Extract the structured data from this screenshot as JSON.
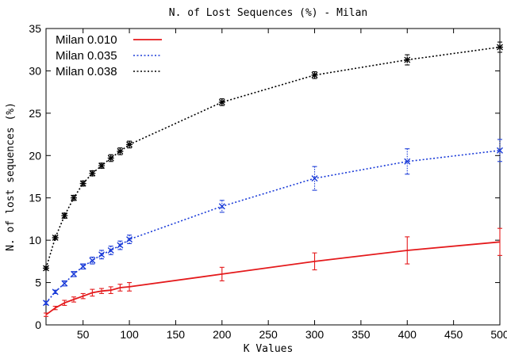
{
  "chart_data": {
    "type": "line",
    "title": "N. of Lost Sequences (%) - Milan",
    "xlabel": "K Values",
    "ylabel": "N. of lost sequences (%)",
    "xlim": [
      10,
      500
    ],
    "ylim": [
      0,
      35
    ],
    "x_ticks": [
      50,
      100,
      150,
      200,
      250,
      300,
      350,
      400,
      450,
      500
    ],
    "y_ticks": [
      0,
      5,
      10,
      15,
      20,
      25,
      30,
      35
    ],
    "grid": false,
    "legend_position": "top-left",
    "series": [
      {
        "name": "Milan 0.010",
        "color": "#e41a1c",
        "line_style": "solid",
        "marker": "none",
        "x": [
          10,
          20,
          30,
          40,
          50,
          60,
          70,
          80,
          90,
          100,
          200,
          300,
          400,
          500
        ],
        "y": [
          1.2,
          2.0,
          2.6,
          3.0,
          3.4,
          3.8,
          4.0,
          4.1,
          4.4,
          4.5,
          6.0,
          7.5,
          8.8,
          9.8
        ],
        "err": [
          0.2,
          0.2,
          0.3,
          0.3,
          0.3,
          0.4,
          0.3,
          0.4,
          0.4,
          0.5,
          0.8,
          1.0,
          1.6,
          1.6
        ]
      },
      {
        "name": "Milan 0.035",
        "color": "#1a3bd8",
        "line_style": "dotted",
        "marker": "x",
        "x": [
          10,
          20,
          30,
          40,
          50,
          60,
          70,
          80,
          90,
          100,
          200,
          300,
          400,
          500
        ],
        "y": [
          2.6,
          3.9,
          4.9,
          6.0,
          6.9,
          7.6,
          8.3,
          8.8,
          9.4,
          10.1,
          14.0,
          17.3,
          19.3,
          20.6
        ],
        "err": [
          0.2,
          0.2,
          0.3,
          0.3,
          0.3,
          0.4,
          0.5,
          0.5,
          0.5,
          0.5,
          0.7,
          1.4,
          1.5,
          1.3
        ]
      },
      {
        "name": "Milan 0.038",
        "color": "#000000",
        "line_style": "dotted",
        "marker": "asterisk",
        "x": [
          10,
          20,
          30,
          40,
          50,
          60,
          70,
          80,
          90,
          100,
          200,
          300,
          400,
          500
        ],
        "y": [
          6.7,
          10.3,
          12.9,
          15.0,
          16.7,
          17.9,
          18.8,
          19.7,
          20.5,
          21.3,
          26.3,
          29.5,
          31.3,
          32.8
        ],
        "err": [
          0.2,
          0.2,
          0.3,
          0.3,
          0.3,
          0.3,
          0.3,
          0.4,
          0.4,
          0.4,
          0.4,
          0.4,
          0.6,
          0.6
        ]
      }
    ]
  }
}
